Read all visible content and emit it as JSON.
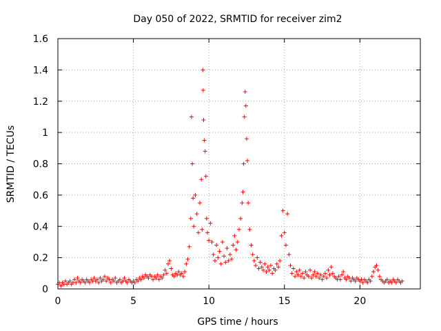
{
  "chart_data": {
    "type": "scatter",
    "title": "Day 050 of 2022, SRMTID for receiver zim2",
    "xlabel": "GPS time / hours",
    "ylabel": "SRMTID / TECUs",
    "xlim": [
      0,
      24
    ],
    "ylim": [
      0,
      1.6
    ],
    "xticks": [
      "0",
      "5",
      "10",
      "15",
      "20"
    ],
    "yticks": [
      "0",
      "0.2",
      "0.4",
      "0.6",
      "0.8",
      "1",
      "1.2",
      "1.4",
      "1.6"
    ],
    "grid": true,
    "marker": "+",
    "marker_color": "#ff0000",
    "series": [
      {
        "name": "SRMTID",
        "points": [
          [
            0.0,
            0.03
          ],
          [
            0.1,
            0.04
          ],
          [
            0.2,
            0.02
          ],
          [
            0.3,
            0.04
          ],
          [
            0.4,
            0.03
          ],
          [
            0.5,
            0.05
          ],
          [
            0.6,
            0.03
          ],
          [
            0.7,
            0.04
          ],
          [
            0.8,
            0.05
          ],
          [
            0.9,
            0.03
          ],
          [
            1.0,
            0.04
          ],
          [
            1.1,
            0.06
          ],
          [
            1.2,
            0.04
          ],
          [
            1.3,
            0.07
          ],
          [
            1.4,
            0.05
          ],
          [
            1.5,
            0.04
          ],
          [
            1.6,
            0.06
          ],
          [
            1.7,
            0.05
          ],
          [
            1.8,
            0.04
          ],
          [
            1.9,
            0.06
          ],
          [
            2.0,
            0.05
          ],
          [
            2.1,
            0.04
          ],
          [
            2.2,
            0.06
          ],
          [
            2.3,
            0.05
          ],
          [
            2.4,
            0.07
          ],
          [
            2.5,
            0.05
          ],
          [
            2.6,
            0.06
          ],
          [
            2.7,
            0.04
          ],
          [
            2.8,
            0.07
          ],
          [
            2.9,
            0.05
          ],
          [
            3.0,
            0.06
          ],
          [
            3.1,
            0.08
          ],
          [
            3.2,
            0.05
          ],
          [
            3.3,
            0.07
          ],
          [
            3.4,
            0.06
          ],
          [
            3.5,
            0.04
          ],
          [
            3.6,
            0.06
          ],
          [
            3.7,
            0.05
          ],
          [
            3.8,
            0.07
          ],
          [
            3.9,
            0.04
          ],
          [
            4.0,
            0.05
          ],
          [
            4.1,
            0.06
          ],
          [
            4.2,
            0.04
          ],
          [
            4.3,
            0.05
          ],
          [
            4.4,
            0.07
          ],
          [
            4.5,
            0.05
          ],
          [
            4.6,
            0.04
          ],
          [
            4.7,
            0.06
          ],
          [
            4.8,
            0.05
          ],
          [
            4.9,
            0.04
          ],
          [
            5.0,
            0.05
          ],
          [
            5.1,
            0.04
          ],
          [
            5.2,
            0.06
          ],
          [
            5.3,
            0.05
          ],
          [
            5.4,
            0.07
          ],
          [
            5.5,
            0.06
          ],
          [
            5.6,
            0.08
          ],
          [
            5.7,
            0.07
          ],
          [
            5.8,
            0.09
          ],
          [
            5.9,
            0.08
          ],
          [
            6.0,
            0.07
          ],
          [
            6.1,
            0.09
          ],
          [
            6.2,
            0.08
          ],
          [
            6.3,
            0.06
          ],
          [
            6.4,
            0.08
          ],
          [
            6.5,
            0.07
          ],
          [
            6.6,
            0.09
          ],
          [
            6.7,
            0.06
          ],
          [
            6.8,
            0.08
          ],
          [
            6.9,
            0.07
          ],
          [
            7.0,
            0.09
          ],
          [
            7.1,
            0.12
          ],
          [
            7.2,
            0.1
          ],
          [
            7.3,
            0.16
          ],
          [
            7.4,
            0.18
          ],
          [
            7.5,
            0.13
          ],
          [
            7.6,
            0.09
          ],
          [
            7.7,
            0.08
          ],
          [
            7.8,
            0.1
          ],
          [
            7.9,
            0.09
          ],
          [
            8.0,
            0.11
          ],
          [
            8.1,
            0.09
          ],
          [
            8.2,
            0.1
          ],
          [
            8.3,
            0.08
          ],
          [
            8.4,
            0.11
          ],
          [
            8.5,
            0.16
          ],
          [
            8.6,
            0.19
          ],
          [
            8.7,
            0.27
          ],
          [
            8.8,
            0.45
          ],
          [
            8.85,
            1.1
          ],
          [
            8.9,
            0.8
          ],
          [
            8.95,
            0.58
          ],
          [
            9.0,
            0.4
          ],
          [
            9.1,
            0.6
          ],
          [
            9.2,
            0.48
          ],
          [
            9.3,
            0.36
          ],
          [
            9.4,
            0.55
          ],
          [
            9.5,
            0.7
          ],
          [
            9.55,
            0.38
          ],
          [
            9.6,
            1.4
          ],
          [
            9.62,
            1.27
          ],
          [
            9.65,
            1.08
          ],
          [
            9.7,
            0.95
          ],
          [
            9.75,
            0.88
          ],
          [
            9.8,
            0.72
          ],
          [
            9.85,
            0.45
          ],
          [
            9.9,
            0.36
          ],
          [
            10.0,
            0.31
          ],
          [
            10.1,
            0.42
          ],
          [
            10.2,
            0.3
          ],
          [
            10.3,
            0.22
          ],
          [
            10.4,
            0.18
          ],
          [
            10.5,
            0.28
          ],
          [
            10.6,
            0.2
          ],
          [
            10.7,
            0.24
          ],
          [
            10.8,
            0.16
          ],
          [
            10.9,
            0.3
          ],
          [
            11.0,
            0.21
          ],
          [
            11.1,
            0.17
          ],
          [
            11.2,
            0.26
          ],
          [
            11.3,
            0.18
          ],
          [
            11.4,
            0.22
          ],
          [
            11.5,
            0.19
          ],
          [
            11.6,
            0.28
          ],
          [
            11.7,
            0.34
          ],
          [
            11.8,
            0.25
          ],
          [
            11.9,
            0.3
          ],
          [
            12.0,
            0.38
          ],
          [
            12.1,
            0.45
          ],
          [
            12.2,
            0.55
          ],
          [
            12.25,
            0.62
          ],
          [
            12.3,
            0.8
          ],
          [
            12.35,
            1.1
          ],
          [
            12.4,
            1.26
          ],
          [
            12.45,
            1.17
          ],
          [
            12.5,
            0.96
          ],
          [
            12.55,
            0.82
          ],
          [
            12.6,
            0.55
          ],
          [
            12.7,
            0.38
          ],
          [
            12.8,
            0.28
          ],
          [
            12.9,
            0.22
          ],
          [
            13.0,
            0.18
          ],
          [
            13.1,
            0.15
          ],
          [
            13.2,
            0.2
          ],
          [
            13.3,
            0.13
          ],
          [
            13.4,
            0.17
          ],
          [
            13.5,
            0.14
          ],
          [
            13.6,
            0.12
          ],
          [
            13.7,
            0.16
          ],
          [
            13.8,
            0.11
          ],
          [
            13.9,
            0.14
          ],
          [
            14.0,
            0.12
          ],
          [
            14.1,
            0.15
          ],
          [
            14.2,
            0.1
          ],
          [
            14.3,
            0.13
          ],
          [
            14.4,
            0.12
          ],
          [
            14.5,
            0.16
          ],
          [
            14.6,
            0.14
          ],
          [
            14.7,
            0.18
          ],
          [
            14.8,
            0.34
          ],
          [
            14.9,
            0.5
          ],
          [
            15.0,
            0.36
          ],
          [
            15.1,
            0.28
          ],
          [
            15.2,
            0.48
          ],
          [
            15.3,
            0.22
          ],
          [
            15.4,
            0.15
          ],
          [
            15.5,
            0.1
          ],
          [
            15.6,
            0.13
          ],
          [
            15.7,
            0.08
          ],
          [
            15.8,
            0.11
          ],
          [
            15.9,
            0.09
          ],
          [
            16.0,
            0.12
          ],
          [
            16.1,
            0.08
          ],
          [
            16.2,
            0.1
          ],
          [
            16.3,
            0.07
          ],
          [
            16.4,
            0.11
          ],
          [
            16.5,
            0.09
          ],
          [
            16.6,
            0.08
          ],
          [
            16.7,
            0.12
          ],
          [
            16.8,
            0.07
          ],
          [
            16.9,
            0.09
          ],
          [
            17.0,
            0.11
          ],
          [
            17.1,
            0.08
          ],
          [
            17.2,
            0.1
          ],
          [
            17.3,
            0.07
          ],
          [
            17.4,
            0.09
          ],
          [
            17.5,
            0.06
          ],
          [
            17.6,
            0.08
          ],
          [
            17.7,
            0.1
          ],
          [
            17.8,
            0.07
          ],
          [
            17.9,
            0.12
          ],
          [
            18.0,
            0.09
          ],
          [
            18.1,
            0.14
          ],
          [
            18.2,
            0.1
          ],
          [
            18.3,
            0.08
          ],
          [
            18.4,
            0.07
          ],
          [
            18.5,
            0.06
          ],
          [
            18.6,
            0.08
          ],
          [
            18.7,
            0.06
          ],
          [
            18.8,
            0.09
          ],
          [
            18.9,
            0.11
          ],
          [
            19.0,
            0.07
          ],
          [
            19.1,
            0.06
          ],
          [
            19.2,
            0.08
          ],
          [
            19.3,
            0.07
          ],
          [
            19.4,
            0.05
          ],
          [
            19.5,
            0.07
          ],
          [
            19.6,
            0.06
          ],
          [
            19.7,
            0.05
          ],
          [
            19.8,
            0.07
          ],
          [
            19.9,
            0.06
          ],
          [
            20.0,
            0.05
          ],
          [
            20.1,
            0.06
          ],
          [
            20.2,
            0.04
          ],
          [
            20.3,
            0.06
          ],
          [
            20.4,
            0.05
          ],
          [
            20.5,
            0.04
          ],
          [
            20.6,
            0.06
          ],
          [
            20.7,
            0.05
          ],
          [
            20.8,
            0.08
          ],
          [
            20.9,
            0.11
          ],
          [
            21.0,
            0.14
          ],
          [
            21.1,
            0.15
          ],
          [
            21.2,
            0.12
          ],
          [
            21.3,
            0.08
          ],
          [
            21.4,
            0.06
          ],
          [
            21.5,
            0.05
          ],
          [
            21.6,
            0.04
          ],
          [
            21.7,
            0.05
          ],
          [
            21.8,
            0.06
          ],
          [
            21.9,
            0.04
          ],
          [
            22.0,
            0.05
          ],
          [
            22.1,
            0.04
          ],
          [
            22.2,
            0.06
          ],
          [
            22.3,
            0.05
          ],
          [
            22.4,
            0.04
          ],
          [
            22.5,
            0.06
          ],
          [
            22.6,
            0.05
          ],
          [
            22.7,
            0.04
          ],
          [
            22.8,
            0.05
          ]
        ]
      }
    ]
  }
}
